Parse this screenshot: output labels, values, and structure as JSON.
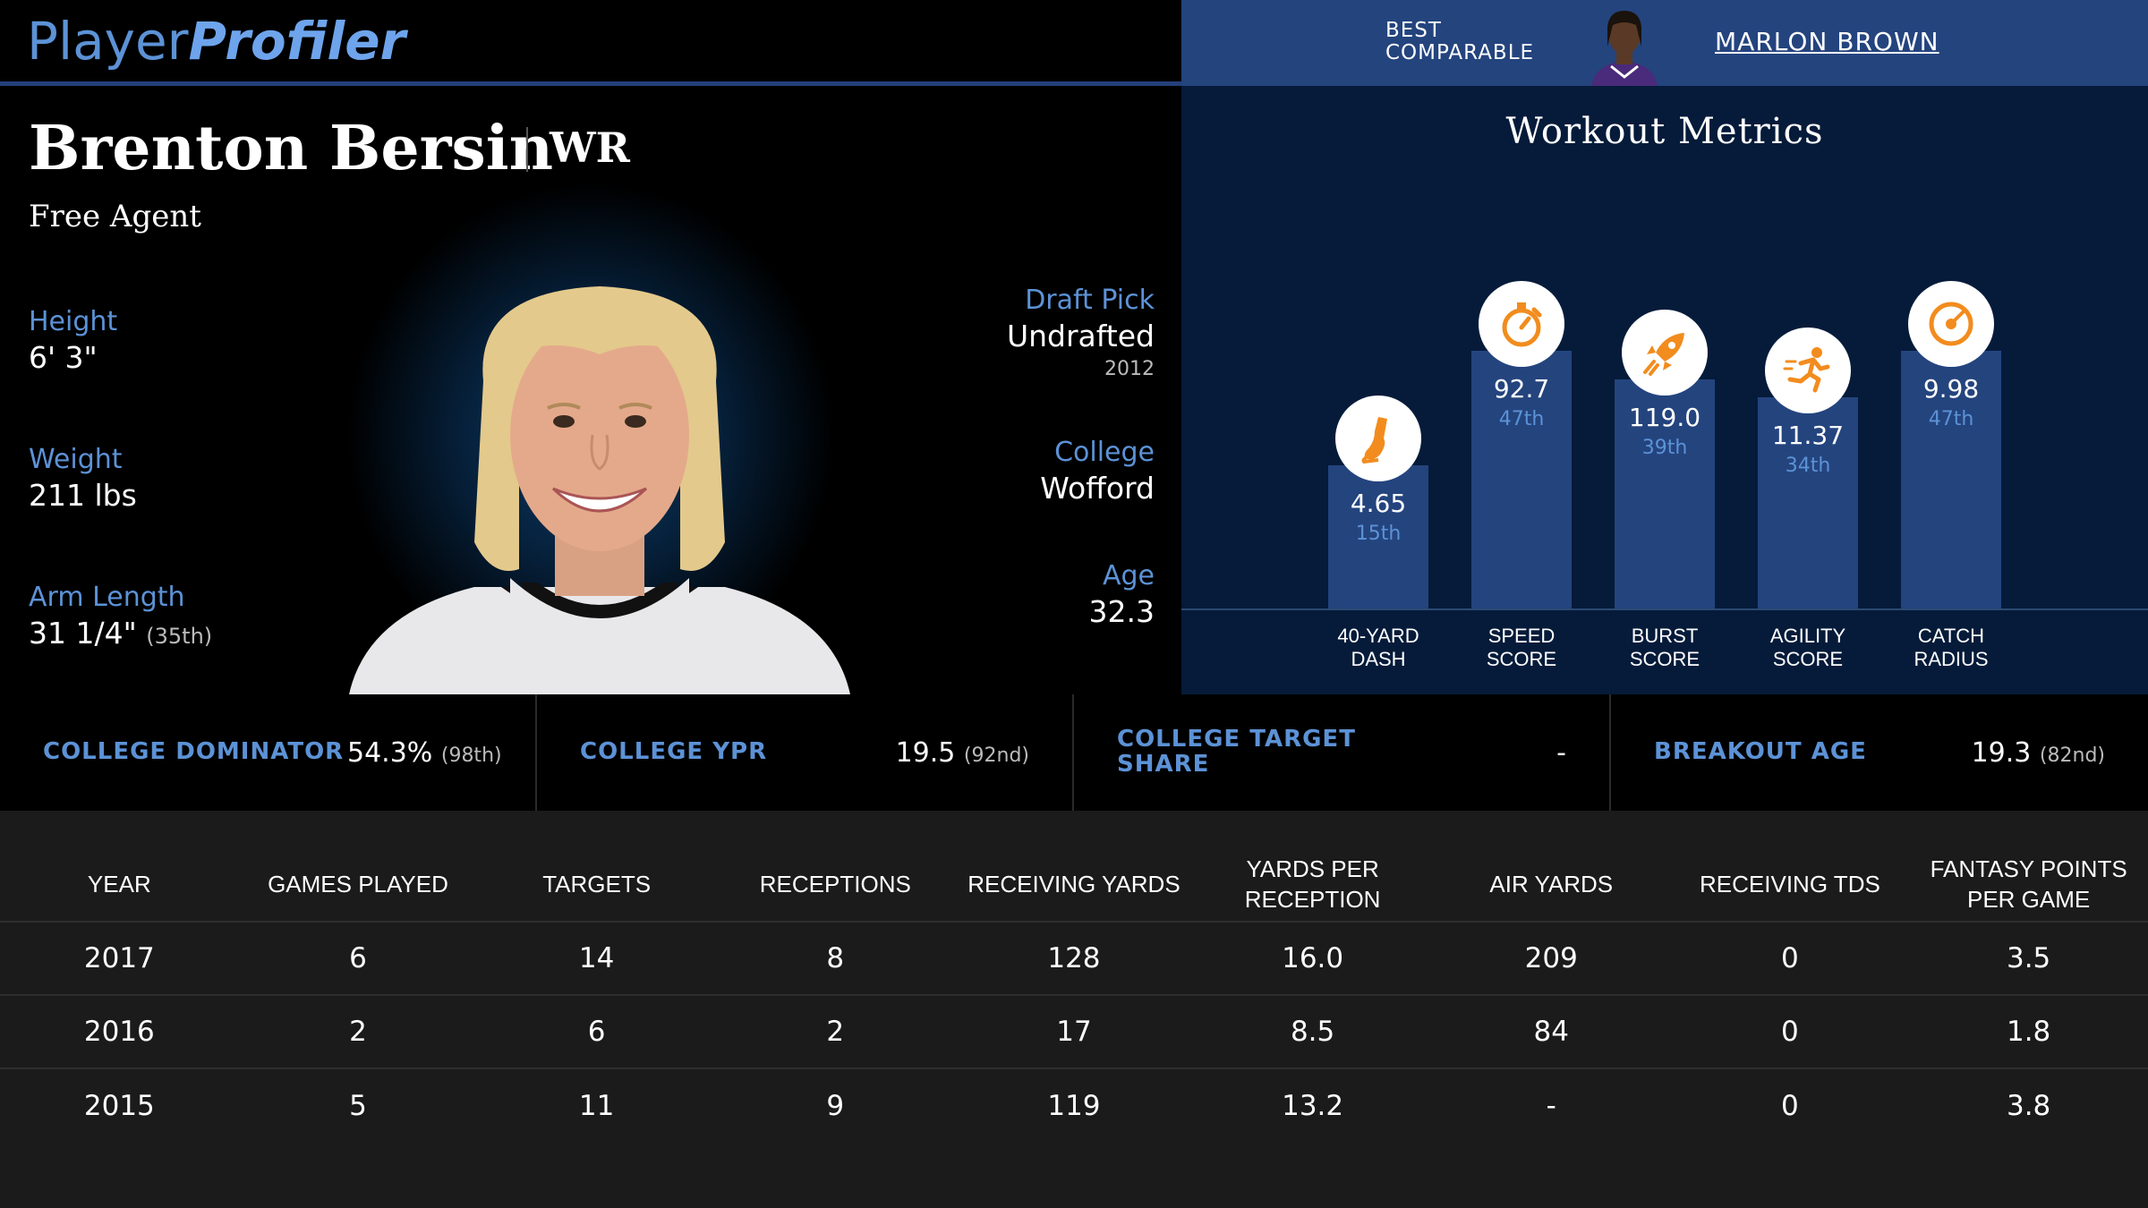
{
  "header": {
    "logo_part1": "Player",
    "logo_part2": "Profiler",
    "best_comparable_label_line1": "BEST",
    "best_comparable_label_line2": "COMPARABLE",
    "best_comparable_name": "MARLON BROWN"
  },
  "player": {
    "name": "Brenton Bersin",
    "position": "WR",
    "team": "Free Agent",
    "height_label": "Height",
    "height": "6' 3\"",
    "weight_label": "Weight",
    "weight": "211 lbs",
    "arm_label": "Arm Length",
    "arm_length": "31 1/4\"",
    "arm_pct": "(35th)",
    "draft_label": "Draft Pick",
    "draft": "Undrafted",
    "draft_year": "2012",
    "college_label": "College",
    "college": "Wofford",
    "age_label": "Age",
    "age": "32.3"
  },
  "workout": {
    "title": "Workout Metrics",
    "metrics": [
      {
        "label1": "40-YARD",
        "label2": "DASH",
        "value": "4.65",
        "pct": "15th",
        "percentile": 15,
        "icon": "shoe-icon"
      },
      {
        "label1": "SPEED",
        "label2": "SCORE",
        "value": "92.7",
        "pct": "47th",
        "percentile": 47,
        "icon": "stopwatch-icon"
      },
      {
        "label1": "BURST",
        "label2": "SCORE",
        "value": "119.0",
        "pct": "39th",
        "percentile": 39,
        "icon": "rocket-icon"
      },
      {
        "label1": "AGILITY",
        "label2": "SCORE",
        "value": "11.37",
        "pct": "34th",
        "percentile": 34,
        "icon": "runner-icon"
      },
      {
        "label1": "CATCH",
        "label2": "RADIUS",
        "value": "9.98",
        "pct": "47th",
        "percentile": 47,
        "icon": "target-icon"
      }
    ]
  },
  "college_stats": [
    {
      "label": "COLLEGE DOMINATOR",
      "value": "54.3%",
      "pct": "(98th)"
    },
    {
      "label": "COLLEGE YPR",
      "value": "19.5",
      "pct": "(92nd)"
    },
    {
      "label_line1": "COLLEGE TARGET",
      "label_line2": "SHARE",
      "value": "-",
      "pct": ""
    },
    {
      "label": "BREAKOUT AGE",
      "value": "19.3",
      "pct": "(82nd)"
    }
  ],
  "table": {
    "headers": [
      "YEAR",
      "GAMES PLAYED",
      "TARGETS",
      "RECEPTIONS",
      "RECEIVING YARDS",
      "YARDS PER RECEPTION",
      "AIR YARDS",
      "RECEIVING TDS",
      "FANTASY POINTS PER GAME"
    ],
    "rows": [
      [
        "2017",
        "6",
        "14",
        "8",
        "128",
        "16.0",
        "209",
        "0",
        "3.5"
      ],
      [
        "2016",
        "2",
        "6",
        "2",
        "17",
        "8.5",
        "84",
        "0",
        "1.8"
      ],
      [
        "2015",
        "5",
        "11",
        "9",
        "119",
        "13.2",
        "-",
        "0",
        "3.8"
      ]
    ]
  },
  "colors": {
    "accent_blue": "#5c92d6",
    "bar_blue": "#24447e",
    "icon_orange": "#f28c1e"
  }
}
